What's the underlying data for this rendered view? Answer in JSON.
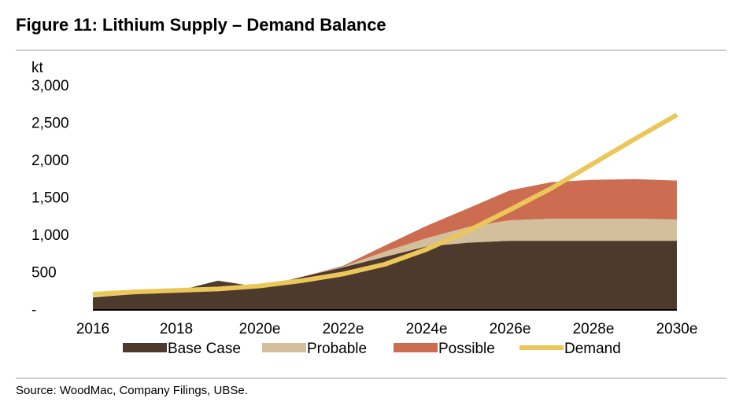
{
  "title": "Figure 11: Lithium Supply – Demand Balance",
  "source": "Source:  WoodMac, Company Filings, UBSe.",
  "chart_data": {
    "type": "area",
    "title": "Figure 11: Lithium Supply – Demand Balance",
    "ylabel": "kt",
    "xlabel": "",
    "ylim": [
      0,
      3000
    ],
    "y_ticks": [
      0,
      500,
      1000,
      1500,
      2000,
      2500,
      3000
    ],
    "y_tick_labels": [
      "-",
      "500",
      "1,000",
      "1,500",
      "2,000",
      "2,500",
      "3,000"
    ],
    "x": [
      2016,
      2017,
      2018,
      2019,
      2020,
      2021,
      2022,
      2023,
      2024,
      2025,
      2026,
      2027,
      2028,
      2029,
      2030
    ],
    "x_tick_labels": [
      "2016",
      "2018",
      "2020e",
      "2022e",
      "2024e",
      "2026e",
      "2028e",
      "2030e"
    ],
    "x_tick_years": [
      2016,
      2018,
      2020,
      2022,
      2024,
      2026,
      2028,
      2030
    ],
    "stacked": true,
    "series": [
      {
        "name": "Base Case",
        "kind": "area",
        "color": "#4e3a2c",
        "values": [
          158,
          200,
          240,
          380,
          295,
          430,
          560,
          700,
          840,
          890,
          915,
          915,
          915,
          915,
          915
        ]
      },
      {
        "name": "Probable",
        "kind": "area",
        "color": "#d3bf9b",
        "values": [
          0,
          0,
          0,
          0,
          0,
          0,
          10,
          70,
          110,
          210,
          275,
          295,
          295,
          295,
          285
        ]
      },
      {
        "name": "Possible",
        "kind": "area",
        "color": "#cc6c51",
        "values": [
          0,
          0,
          0,
          0,
          0,
          0,
          10,
          80,
          165,
          250,
          400,
          490,
          520,
          530,
          520
        ]
      },
      {
        "name": "Demand",
        "kind": "line",
        "color": "#ebc75a",
        "values": [
          200,
          230,
          250,
          270,
          310,
          380,
          470,
          600,
          800,
          1050,
          1330,
          1620,
          1950,
          2280,
          2600
        ]
      }
    ],
    "legend_position": "bottom",
    "grid": false
  }
}
